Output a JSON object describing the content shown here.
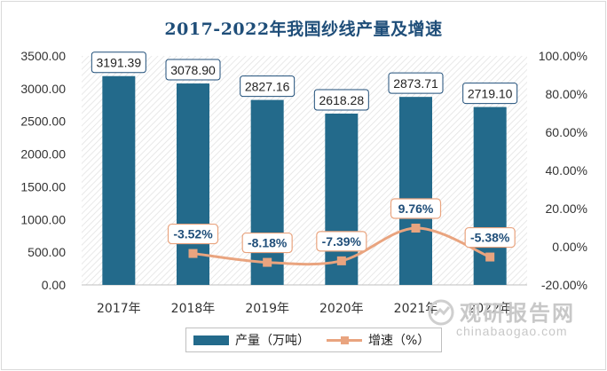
{
  "chart_data": {
    "type": "bar",
    "title": "2017-2022年我国纱线产量及增速",
    "categories": [
      "2017年",
      "2018年",
      "2019年",
      "2020年",
      "2021年",
      "2022年"
    ],
    "series": [
      {
        "name": "产量（万吨）",
        "type": "bar",
        "axis": "left",
        "values": [
          3191.39,
          3078.9,
          2827.16,
          2618.28,
          2873.71,
          2719.1
        ],
        "labels": [
          "3191.39",
          "3078.90",
          "2827.16",
          "2618.28",
          "2873.71",
          "2719.10"
        ]
      },
      {
        "name": "增速（%）",
        "type": "line",
        "axis": "right",
        "values": [
          null,
          -3.52,
          -8.18,
          -7.39,
          9.76,
          -5.38
        ],
        "labels": [
          "",
          "-3.52%",
          "-8.18%",
          "-7.39%",
          "9.76%",
          "-5.38%"
        ]
      }
    ],
    "y_left": {
      "range": [
        0,
        3500
      ],
      "ticks": [
        0,
        500,
        1000,
        1500,
        2000,
        2500,
        3000,
        3500
      ],
      "tick_labels": [
        "0.00",
        "500.00",
        "1000.00",
        "1500.00",
        "2000.00",
        "2500.00",
        "3000.00",
        "3500.00"
      ]
    },
    "y_right": {
      "range": [
        -20,
        100
      ],
      "ticks": [
        -20,
        0,
        20,
        40,
        60,
        80,
        100
      ],
      "tick_labels": [
        "-20.00%",
        "0.00%",
        "20.00%",
        "40.00%",
        "60.00%",
        "80.00%",
        "100.00%"
      ]
    },
    "grid": false,
    "legend_position": "bottom",
    "colors": {
      "bar": "#236a8b",
      "line": "#e9a47f",
      "title": "#1f4e79"
    }
  },
  "watermark": {
    "text_cn": "观研报告网",
    "text_en": "chinabaogao.com",
    "logo_icon": "chinabaogao-logo"
  }
}
